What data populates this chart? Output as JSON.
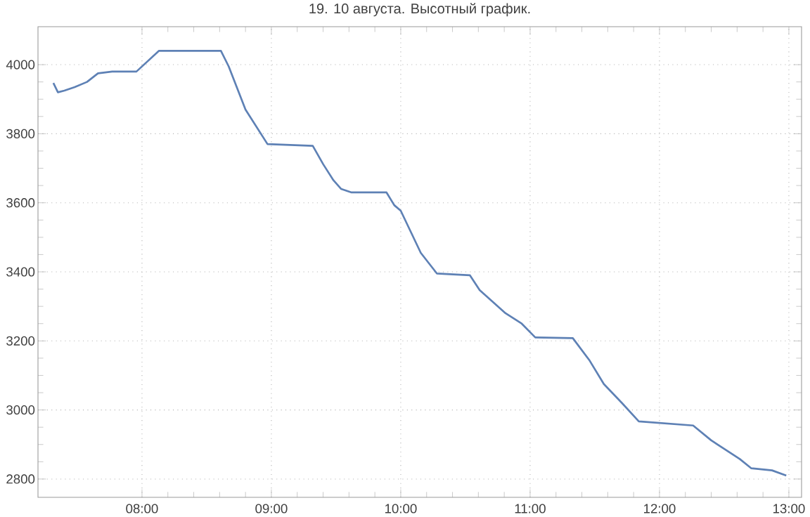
{
  "chart_data": {
    "type": "line",
    "title": "19. 10 августа. Высотный график.",
    "color": "#5e81b5",
    "line_style": "solid",
    "grid": true,
    "x": [
      7.315,
      7.35,
      7.4,
      7.48,
      7.575,
      7.66,
      7.77,
      7.957,
      8.13,
      8.61,
      8.67,
      8.8,
      8.97,
      9.32,
      9.4,
      9.48,
      9.54,
      9.62,
      9.89,
      9.95,
      10.0,
      10.155,
      10.28,
      10.535,
      10.61,
      10.81,
      10.935,
      11.04,
      11.33,
      11.46,
      11.57,
      11.71,
      11.84,
      12.26,
      12.4,
      12.62,
      12.71,
      12.87,
      12.98
    ],
    "values": [
      3947,
      3920,
      3925,
      3935,
      3950,
      3975,
      3980,
      3980,
      4040,
      4040,
      3995,
      3870,
      3770,
      3765,
      3712,
      3665,
      3640,
      3630,
      3630,
      3593,
      3577,
      3455,
      3395,
      3390,
      3347,
      3280,
      3250,
      3210,
      3208,
      3143,
      3075,
      3020,
      2967,
      2955,
      2912,
      2858,
      2831,
      2825,
      2810
    ],
    "xlim": [
      7.196,
      13.098
    ],
    "ylim": [
      2747,
      4110
    ],
    "xticks": [
      {
        "value": 8,
        "label": "08:00"
      },
      {
        "value": 9,
        "label": "09:00"
      },
      {
        "value": 10,
        "label": "10:00"
      },
      {
        "value": 11,
        "label": "11:00"
      },
      {
        "value": 12,
        "label": "12:00"
      },
      {
        "value": 13,
        "label": "13:00"
      }
    ],
    "yticks": [
      2800,
      3000,
      3200,
      3400,
      3600,
      3800,
      4000
    ]
  }
}
